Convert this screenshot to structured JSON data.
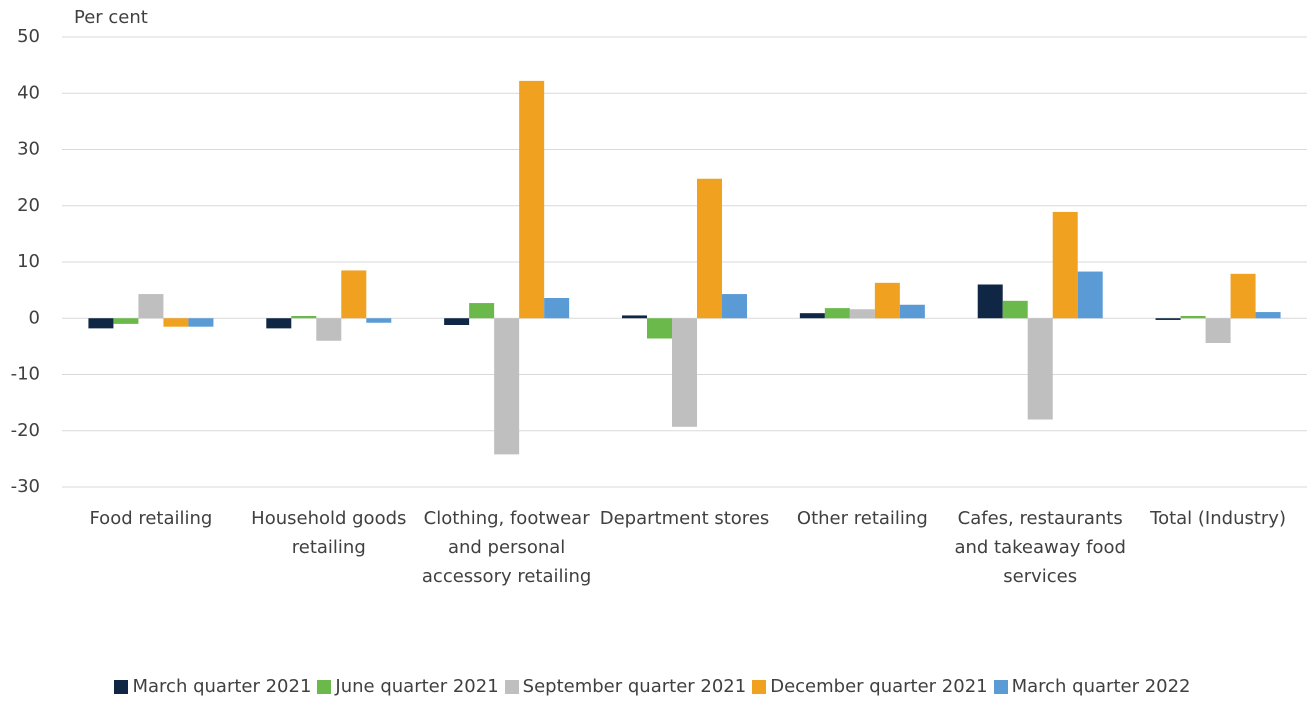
{
  "chart_data": {
    "type": "bar",
    "y_label": "Per cent",
    "categories": [
      "Food retailing",
      "Household goods retailing",
      "Clothing, footwear and personal accessory retailing",
      "Department stores",
      "Other retailing",
      "Cafes, restaurants and takeaway food services",
      "Total (Industry)"
    ],
    "series": [
      {
        "name": "March quarter 2021",
        "color": "#0f2744",
        "values": [
          -1.8,
          -1.8,
          -1.2,
          0.5,
          0.9,
          6.0,
          -0.3
        ]
      },
      {
        "name": "June quarter 2021",
        "color": "#6ab94a",
        "values": [
          -1.0,
          0.4,
          2.7,
          -3.6,
          1.8,
          3.1,
          0.4
        ]
      },
      {
        "name": "September quarter 2021",
        "color": "#bfbfbf",
        "values": [
          4.3,
          -4.0,
          -24.2,
          -19.3,
          1.6,
          -18.0,
          -4.4
        ]
      },
      {
        "name": "December quarter 2021",
        "color": "#f0a11f",
        "values": [
          -1.5,
          8.5,
          42.2,
          24.8,
          6.3,
          18.9,
          7.9
        ]
      },
      {
        "name": "March quarter 2022",
        "color": "#5b9bd5",
        "values": [
          -1.5,
          -0.8,
          3.6,
          4.3,
          2.4,
          8.3,
          1.1
        ]
      }
    ],
    "ylim": [
      -30,
      50
    ],
    "yticks": [
      -30,
      -20,
      -10,
      0,
      10,
      20,
      30,
      40,
      50
    ],
    "grid": true,
    "legend": "bottom"
  }
}
